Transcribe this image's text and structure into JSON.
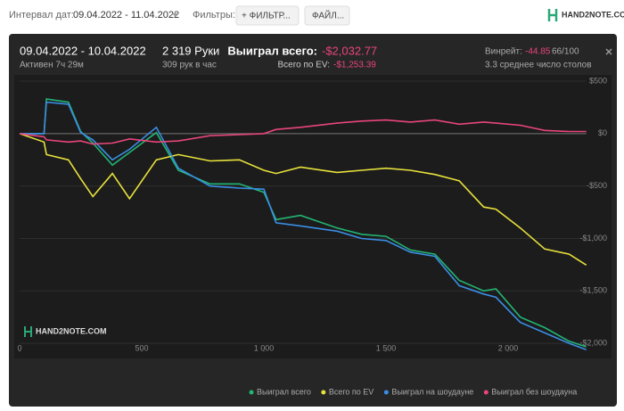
{
  "header": {
    "date_label": "Интервал дат:",
    "date_range": "09.04.2022 - 11.04.2022",
    "filters_label": "Фильтры:",
    "filter_button": "+ ФИЛЬТР...",
    "file_button": "ФАЙЛ...",
    "logo": "HAND2NOTE.COM"
  },
  "stats": {
    "period": "09.04.2022 - 10.04.2022",
    "active": "Активен 7ч 29м",
    "hands": "2 319 Руки",
    "per_hour": "309 рук в час",
    "won_label": "Выиграл всего:",
    "won_value": "-$2,032.77",
    "ev_label": "Всего по EV:",
    "ev_value": "-$1,253.39",
    "winrate_label": "Винрейт:",
    "winrate_value": "-44.85",
    "winrate_unit": "66/100",
    "tables": "3.3 среднее число столов"
  },
  "chart_data": {
    "type": "line",
    "watermark": "HAND2NOTE.COM",
    "x": [
      0,
      100,
      110,
      200,
      250,
      300,
      380,
      450,
      560,
      650,
      780,
      900,
      1000,
      1050,
      1150,
      1300,
      1400,
      1500,
      1600,
      1700,
      1800,
      1900,
      1950,
      2050,
      2150,
      2250,
      2320
    ],
    "series": [
      {
        "name": "Выиграл всего",
        "color": "#22b573",
        "values": [
          0,
          0,
          330,
          300,
          20,
          -90,
          -300,
          -180,
          10,
          -350,
          -480,
          -480,
          -560,
          -820,
          -780,
          -900,
          -960,
          -980,
          -1110,
          -1150,
          -1400,
          -1500,
          -1480,
          -1750,
          -1850,
          -1980,
          -2033
        ]
      },
      {
        "name": "Всего по EV",
        "color": "#e8e23c",
        "values": [
          0,
          -80,
          -200,
          -250,
          -430,
          -600,
          -380,
          -620,
          -250,
          -200,
          -260,
          -250,
          -350,
          -380,
          -320,
          -370,
          -350,
          -330,
          -350,
          -390,
          -450,
          -700,
          -720,
          -900,
          -1100,
          -1150,
          -1253
        ]
      },
      {
        "name": "Выиграл на шоудауне",
        "color": "#3a8ee6",
        "values": [
          0,
          0,
          300,
          280,
          10,
          -60,
          -250,
          -150,
          60,
          -330,
          -500,
          -520,
          -530,
          -850,
          -880,
          -930,
          -1000,
          -1020,
          -1130,
          -1170,
          -1450,
          -1530,
          -1560,
          -1800,
          -1900,
          -2000,
          -2060
        ]
      },
      {
        "name": "Выиграл без шоудауна",
        "color": "#e8457a",
        "values": [
          0,
          -30,
          -60,
          -80,
          -70,
          -100,
          -90,
          -50,
          -80,
          -70,
          -20,
          -10,
          0,
          40,
          60,
          100,
          120,
          130,
          110,
          130,
          90,
          110,
          100,
          80,
          30,
          20,
          20
        ]
      }
    ],
    "xlim": [
      0,
      2320
    ],
    "ylim": [
      -2084,
      526
    ],
    "xticks": [
      0,
      500,
      {
        "value": 1000,
        "label": "1 000"
      },
      {
        "value": 1500,
        "label": "1 500"
      },
      {
        "value": 2000,
        "label": "2 000"
      }
    ],
    "yticks": [
      {
        "value": 500,
        "label": "$500"
      },
      {
        "value": 0,
        "label": "$0"
      },
      {
        "value": -500,
        "label": "-$500"
      },
      {
        "value": -1000,
        "label": "-$1,000"
      },
      {
        "value": -1500,
        "label": "-$1,500"
      },
      {
        "value": -2000,
        "label": "-$2,000"
      }
    ]
  }
}
